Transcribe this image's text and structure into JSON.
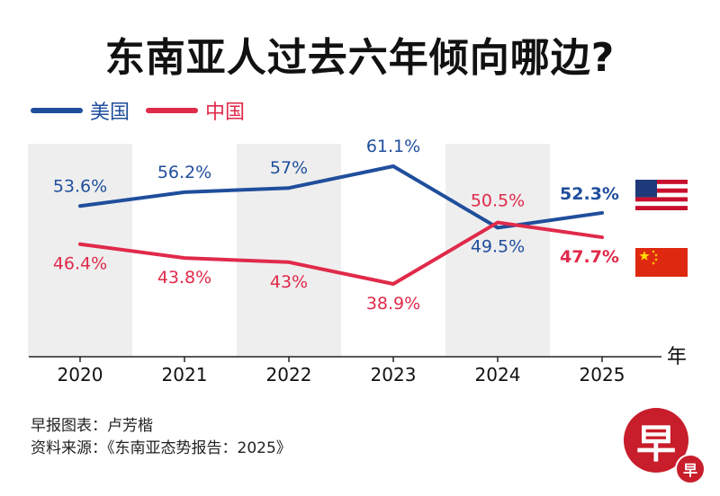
{
  "title": "东南亚人过去六年倾向哪边?",
  "legend": [
    {
      "label": "美国",
      "color": "#1f4e9c"
    },
    {
      "label": "中国",
      "color": "#e02a4a"
    }
  ],
  "chart_data": {
    "type": "line",
    "x": [
      "2020",
      "2021",
      "2022",
      "2023",
      "2024",
      "2025"
    ],
    "x_unit_label": "年",
    "series": [
      {
        "name": "美国",
        "color": "#1f4e9c",
        "values": [
          53.6,
          56.2,
          57,
          61.1,
          49.5,
          52.3
        ],
        "labels": [
          "53.6%",
          "56.2%",
          "57%",
          "61.1%",
          "49.5%",
          "52.3%"
        ]
      },
      {
        "name": "中国",
        "color": "#e02a4a",
        "values": [
          46.4,
          43.8,
          43,
          38.9,
          50.5,
          47.7
        ],
        "labels": [
          "46.4%",
          "43.8%",
          "43%",
          "38.9%",
          "50.5%",
          "47.7%"
        ]
      }
    ],
    "ylim": [
      25,
      75
    ],
    "shaded_years": [
      "2020",
      "2022",
      "2024"
    ]
  },
  "flags": [
    {
      "name": "us-flag-icon"
    },
    {
      "name": "china-flag-icon"
    }
  ],
  "footer": {
    "line1": "早报图表：卢芳楷",
    "line2": "资料来源：《东南亚态势报告：2025》"
  },
  "logo": {
    "char": "早",
    "small_char": "早"
  }
}
